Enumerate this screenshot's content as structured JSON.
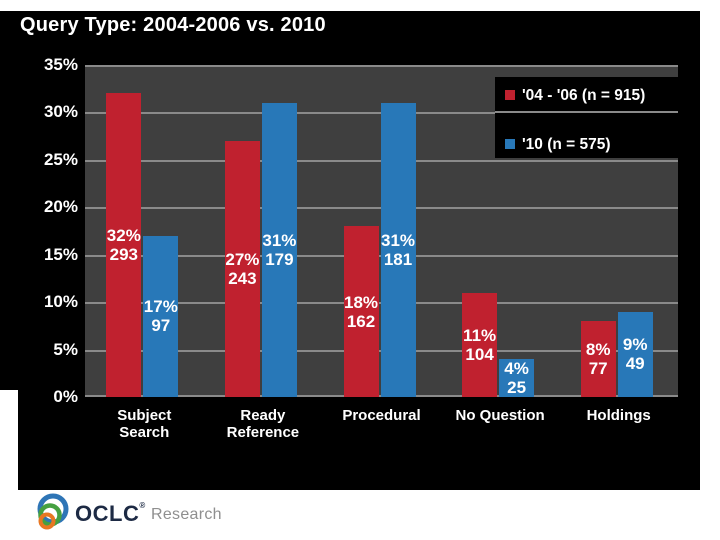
{
  "title": "Query Type: 2004-2006 vs. 2010",
  "y_axis": {
    "ticks": [
      "35%",
      "30%",
      "25%",
      "20%",
      "15%",
      "10%",
      "5%",
      "0%"
    ]
  },
  "legend": [
    {
      "label": "'04 - '06 (n = 915)",
      "color": "#c0212f"
    },
    {
      "label": "'10 (n = 575)",
      "color": "#2878b8"
    }
  ],
  "chart_data": {
    "type": "bar",
    "title": "Query Type: 2004-2006 vs. 2010",
    "categories": [
      "Subject Search",
      "Ready Reference",
      "Procedural",
      "No Question",
      "Holdings"
    ],
    "series": [
      {
        "name": "'04 - '06 (n = 915)",
        "color": "#c0212f",
        "values": [
          32,
          27,
          18,
          11,
          8
        ],
        "counts": [
          293,
          243,
          162,
          104,
          77
        ]
      },
      {
        "name": "'10 (n = 575)",
        "color": "#2878b8",
        "values": [
          17,
          31,
          31,
          4,
          9
        ],
        "counts": [
          97,
          179,
          181,
          25,
          49
        ]
      }
    ],
    "value_unit": "percent",
    "bar_label_format": "{value}%\n{count}",
    "ylim": [
      0,
      35
    ],
    "y_tick_step": 5,
    "grid": true,
    "legend_position": "top-right",
    "plot_background": "#3f3f3f",
    "gridline_color": "#8a8a8a",
    "background": "#000000"
  },
  "footer": {
    "brand": "OCLC",
    "registered_mark": "®",
    "brand_sub": "Research"
  }
}
